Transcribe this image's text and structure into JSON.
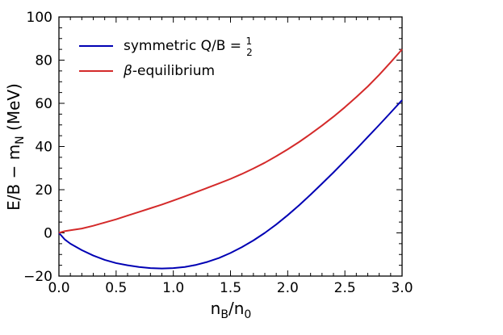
{
  "chart_data": {
    "type": "line",
    "xlabel": "n_B/n_0",
    "ylabel": "E/B − m_N (MeV)",
    "xlim": [
      0.0,
      3.0
    ],
    "ylim": [
      -20,
      100
    ],
    "x_ticks": [
      "0.0",
      "0.5",
      "1.0",
      "1.5",
      "2.0",
      "2.5",
      "3.0"
    ],
    "y_ticks": [
      "−20",
      "0",
      "20",
      "40",
      "60",
      "80",
      "100"
    ],
    "legend_position": "top-left",
    "grid": false,
    "series": [
      {
        "name": "symmetric Q/B = 1/2",
        "color": "#0000b4",
        "x": [
          0.0,
          0.05,
          0.1,
          0.2,
          0.3,
          0.4,
          0.5,
          0.6,
          0.7,
          0.8,
          0.9,
          1.0,
          1.1,
          1.2,
          1.3,
          1.4,
          1.5,
          1.6,
          1.7,
          1.8,
          1.9,
          2.0,
          2.1,
          2.2,
          2.3,
          2.4,
          2.5,
          2.6,
          2.7,
          2.8,
          2.9,
          3.0
        ],
        "y": [
          0.0,
          -3.0,
          -5.0,
          -8.0,
          -10.5,
          -12.5,
          -14.0,
          -15.0,
          -15.8,
          -16.3,
          -16.5,
          -16.3,
          -15.8,
          -14.8,
          -13.4,
          -11.6,
          -9.3,
          -6.6,
          -3.5,
          0.0,
          3.9,
          8.2,
          12.8,
          17.7,
          22.8,
          28.0,
          33.4,
          38.8,
          44.4,
          50.0,
          55.7,
          61.5
        ]
      },
      {
        "name": "β-equilibrium",
        "color": "#d42a2a",
        "x": [
          0.0,
          0.05,
          0.1,
          0.2,
          0.3,
          0.4,
          0.5,
          0.6,
          0.7,
          0.8,
          0.9,
          1.0,
          1.1,
          1.2,
          1.3,
          1.4,
          1.5,
          1.6,
          1.7,
          1.8,
          1.9,
          2.0,
          2.1,
          2.2,
          2.3,
          2.4,
          2.5,
          2.6,
          2.7,
          2.8,
          2.9,
          3.0
        ],
        "y": [
          0.0,
          0.8,
          1.2,
          2.0,
          3.3,
          4.8,
          6.3,
          8.0,
          9.7,
          11.4,
          13.1,
          15.0,
          16.9,
          18.9,
          20.9,
          22.9,
          25.0,
          27.3,
          29.8,
          32.5,
          35.5,
          38.7,
          42.1,
          45.8,
          49.7,
          53.8,
          58.2,
          62.9,
          67.8,
          73.2,
          79.0,
          85.0
        ]
      }
    ]
  }
}
